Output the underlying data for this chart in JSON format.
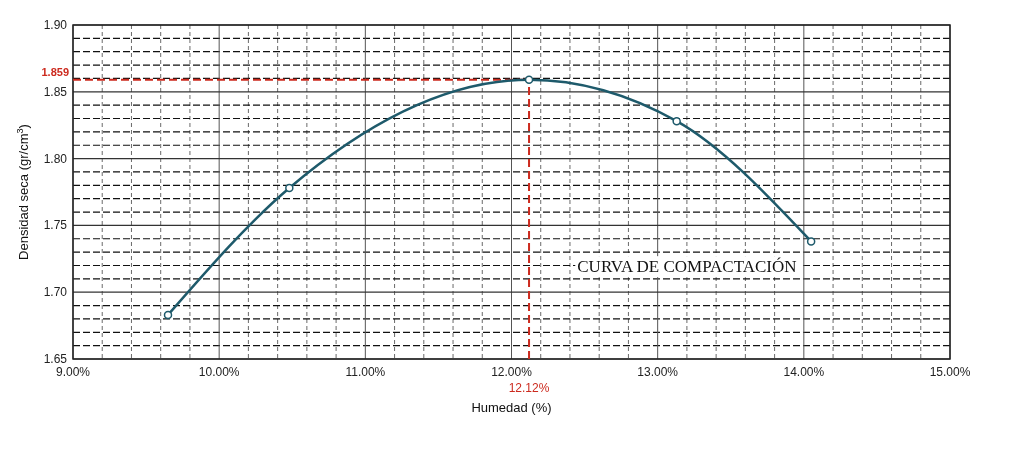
{
  "chart_data": {
    "type": "line",
    "xlabel": "Humedad (%)",
    "ylabel": "Densidad seca (gr/cm$^{3}$)",
    "x": [
      9.65,
      10.48,
      12.12,
      13.13,
      14.05
    ],
    "series": [
      {
        "color": "#1e5a6b",
        "values": [
          1.683,
          1.778,
          1.859,
          1.828,
          1.738
        ]
      }
    ],
    "xlim": [
      9,
      15
    ],
    "xticks": [
      {
        "value": 9,
        "label": "9.00%"
      },
      {
        "value": 10,
        "label": "10.00%"
      },
      {
        "value": 11,
        "label": "11.00%"
      },
      {
        "value": 12,
        "label": "12.00%"
      },
      {
        "value": 13,
        "label": "13.00%"
      },
      {
        "value": 14,
        "label": "14.00%"
      },
      {
        "value": 15,
        "label": "15.00%"
      }
    ],
    "ylim": [
      1.65,
      1.9
    ],
    "yticks": [
      {
        "value": 1.65,
        "label": "1.65"
      },
      {
        "value": 1.7,
        "label": "1.70"
      },
      {
        "value": 1.75,
        "label": "1.75"
      },
      {
        "value": 1.8,
        "label": "1.80"
      },
      {
        "value": 1.85,
        "label": "1.85"
      },
      {
        "value": 1.9,
        "label": "1.90"
      }
    ],
    "grid": true,
    "marker": "circle",
    "line_style": "solid",
    "ref_lines": [
      {
        "axis": "y",
        "value": 1.859,
        "label": "1.859",
        "color": "#cc2a1e",
        "line_style": "dashed"
      },
      {
        "axis": "x",
        "value": 12.12,
        "label": "12.12%",
        "color": "#cc2a1e",
        "line_style": "dashed"
      }
    ],
    "annotations": [
      "CURVA DE COMPACTACIÓN"
    ]
  }
}
